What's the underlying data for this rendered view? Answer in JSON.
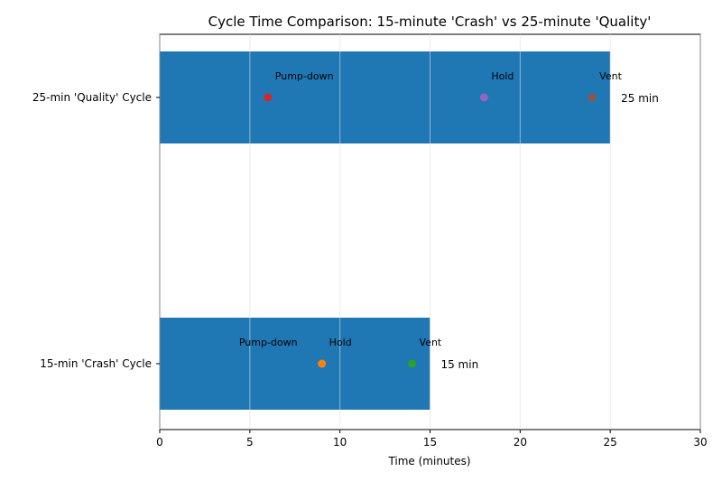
{
  "chart_data": {
    "type": "bar",
    "orientation": "horizontal",
    "title": "Cycle Time Comparison: 15-minute 'Crash' vs 25-minute 'Quality'",
    "xlabel": "Time (minutes)",
    "ylabel": "",
    "xlim": [
      0,
      30
    ],
    "xticks": [
      "0",
      "5",
      "10",
      "15",
      "20",
      "25",
      "30"
    ],
    "grid": "x-axis vertical lines",
    "bar_color": "#1f77b4",
    "categories": [
      "15-min 'Crash' Cycle",
      "25-min 'Quality' Cycle"
    ],
    "values": [
      15,
      25
    ],
    "value_labels": [
      "15 min",
      "25 min"
    ],
    "phase_markers": [
      {
        "cycle": "15-min 'Crash' Cycle",
        "label": "Pump-down",
        "x": 4,
        "color": "#1f77b4"
      },
      {
        "cycle": "15-min 'Crash' Cycle",
        "label": "Hold",
        "x": 9,
        "color": "#ff7f0e"
      },
      {
        "cycle": "15-min 'Crash' Cycle",
        "label": "Vent",
        "x": 14,
        "color": "#2ca02c"
      },
      {
        "cycle": "25-min 'Quality' Cycle",
        "label": "Pump-down",
        "x": 6,
        "color": "#d62728"
      },
      {
        "cycle": "25-min 'Quality' Cycle",
        "label": "Hold",
        "x": 18,
        "color": "#9467bd"
      },
      {
        "cycle": "25-min 'Quality' Cycle",
        "label": "Vent",
        "x": 24,
        "color": "#8c564b"
      }
    ]
  }
}
